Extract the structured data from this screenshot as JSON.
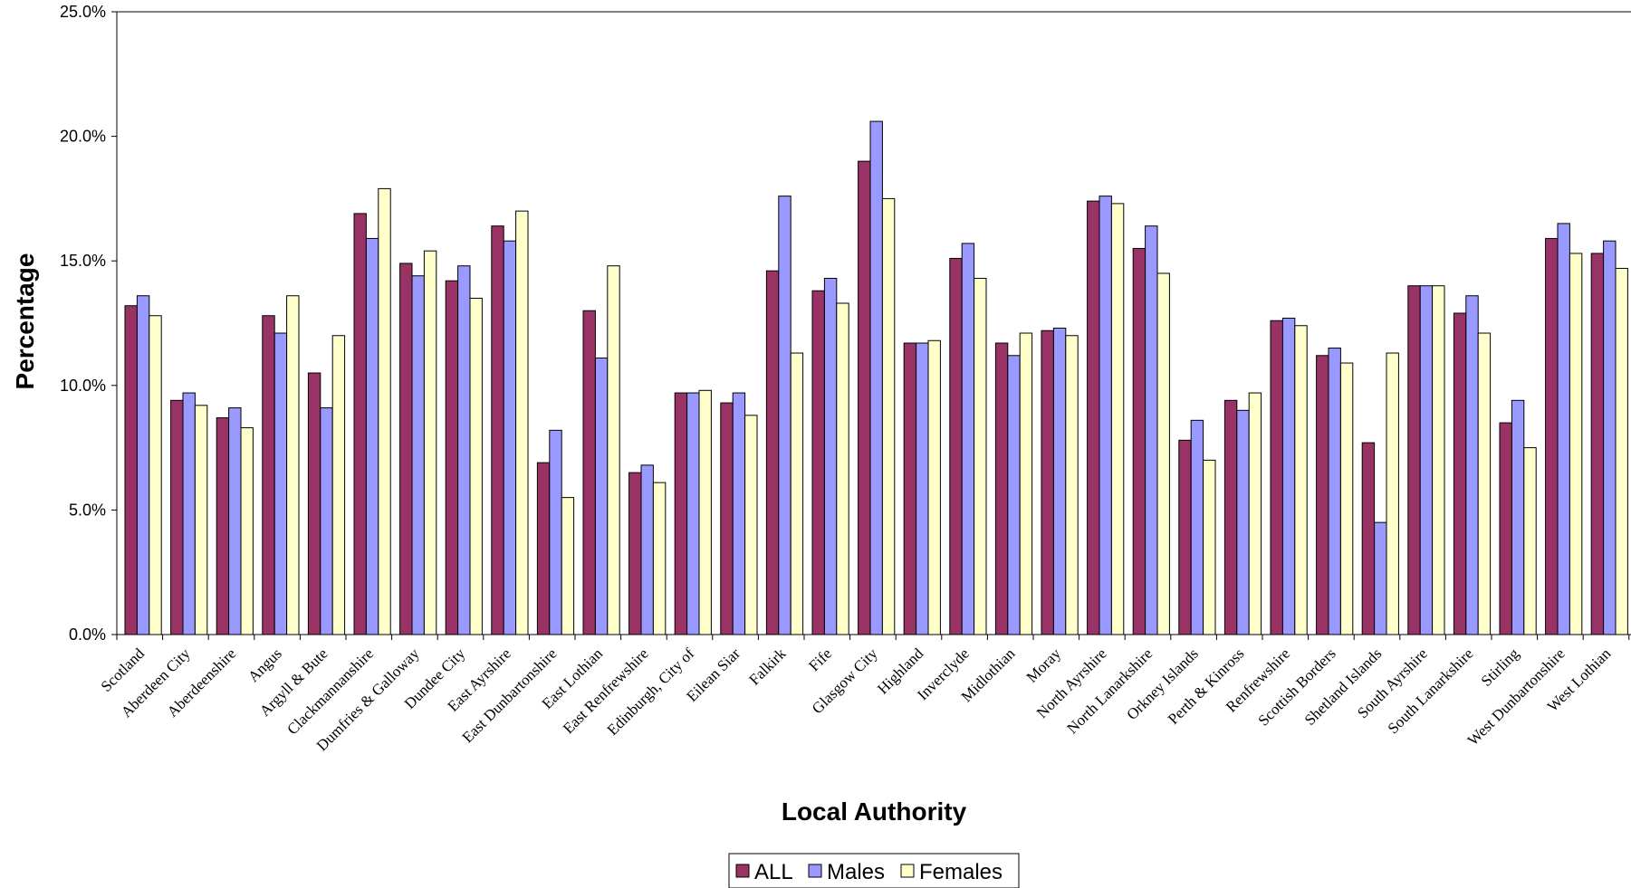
{
  "chart_data": {
    "type": "bar",
    "title": "",
    "xlabel": "Local Authority",
    "ylabel": "Percentage",
    "ylim": [
      0,
      25
    ],
    "yticks": [
      "0.0%",
      "5.0%",
      "10.0%",
      "15.0%",
      "20.0%",
      "25.0%"
    ],
    "grid": false,
    "legend_position": "bottom",
    "categories": [
      "Scotland",
      "Aberdeen City",
      "Aberdeenshire",
      "Angus",
      "Argyll & Bute",
      "Clackmannanshire",
      "Dumfries & Galloway",
      "Dundee City",
      "East Ayrshire",
      "East Dunbartonshire",
      "East Lothian",
      "East Renfrewshire",
      "Edinburgh, City of",
      "Eilean Siar",
      "Falkirk",
      "Fife",
      "Glasgow City",
      "Highland",
      "Inverclyde",
      "Midlothian",
      "Moray",
      "North Ayrshire",
      "North Lanarkshire",
      "Orkney Islands",
      "Perth & Kinross",
      "Renfrewshire",
      "Scottish Borders",
      "Shetland Islands",
      "South Ayrshire",
      "South Lanarkshire",
      "Stirling",
      "West Dunbartonshire",
      "West Lothian"
    ],
    "series": [
      {
        "name": "ALL",
        "color": "#993366",
        "values": [
          13.2,
          9.4,
          8.7,
          12.8,
          10.5,
          16.9,
          14.9,
          14.2,
          16.4,
          6.9,
          13.0,
          6.5,
          9.7,
          9.3,
          14.6,
          13.8,
          19.0,
          11.7,
          15.1,
          11.7,
          12.2,
          17.4,
          15.5,
          7.8,
          9.4,
          12.6,
          11.2,
          7.7,
          14.0,
          12.9,
          8.5,
          15.9,
          15.3
        ]
      },
      {
        "name": "Males",
        "color": "#9999ff",
        "values": [
          13.6,
          9.7,
          9.1,
          12.1,
          9.1,
          15.9,
          14.4,
          14.8,
          15.8,
          8.2,
          11.1,
          6.8,
          9.7,
          9.7,
          17.6,
          14.3,
          20.6,
          11.7,
          15.7,
          11.2,
          12.3,
          17.6,
          16.4,
          8.6,
          9.0,
          12.7,
          11.5,
          4.5,
          14.0,
          13.6,
          9.4,
          16.5,
          15.8
        ]
      },
      {
        "name": "Females",
        "color": "#ffffcc",
        "values": [
          12.8,
          9.2,
          8.3,
          13.6,
          12.0,
          17.9,
          15.4,
          13.5,
          17.0,
          5.5,
          14.8,
          6.1,
          9.8,
          8.8,
          11.3,
          13.3,
          17.5,
          11.8,
          14.3,
          12.1,
          12.0,
          17.3,
          14.5,
          7.0,
          9.7,
          12.4,
          10.9,
          11.3,
          14.0,
          12.1,
          7.5,
          15.3,
          14.7
        ]
      }
    ]
  }
}
